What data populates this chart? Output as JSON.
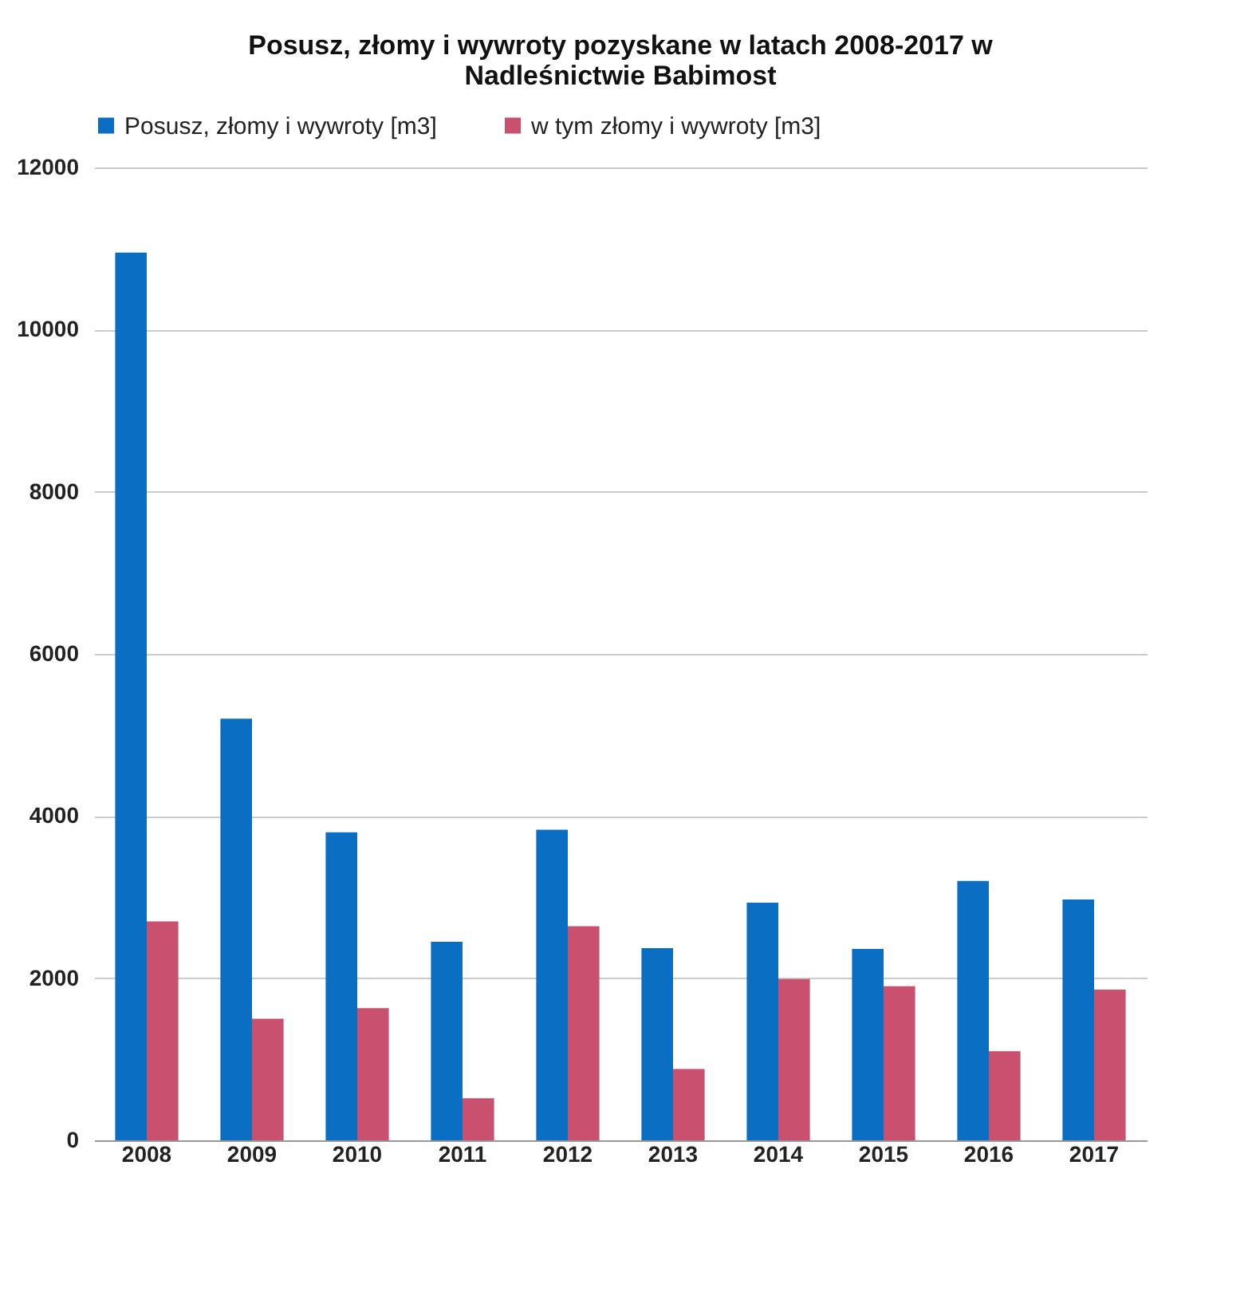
{
  "chart_data": {
    "type": "bar",
    "title": [
      "Posusz, złomy i wywroty pozyskane w latach 2008-2017 w",
      "Nadleśnictwie Babimost"
    ],
    "categories": [
      "2008",
      "2009",
      "2010",
      "2011",
      "2012",
      "2013",
      "2014",
      "2015",
      "2016",
      "2017"
    ],
    "series": [
      {
        "name": "Posusz, złomy i wywroty [m3]",
        "color": "#0a6fc2",
        "values": [
          10950,
          5200,
          3800,
          2450,
          3830,
          2370,
          2930,
          2360,
          3200,
          2970
        ]
      },
      {
        "name": "w tym złomy i wywroty [m3]",
        "color": "#c9506e",
        "values": [
          2700,
          1500,
          1630,
          520,
          2640,
          880,
          1990,
          1900,
          1100,
          1860
        ]
      }
    ],
    "ylim": [
      0,
      12000
    ],
    "yticks": [
      0,
      2000,
      4000,
      6000,
      8000,
      10000,
      12000
    ],
    "grid": "y",
    "legend": "top"
  }
}
